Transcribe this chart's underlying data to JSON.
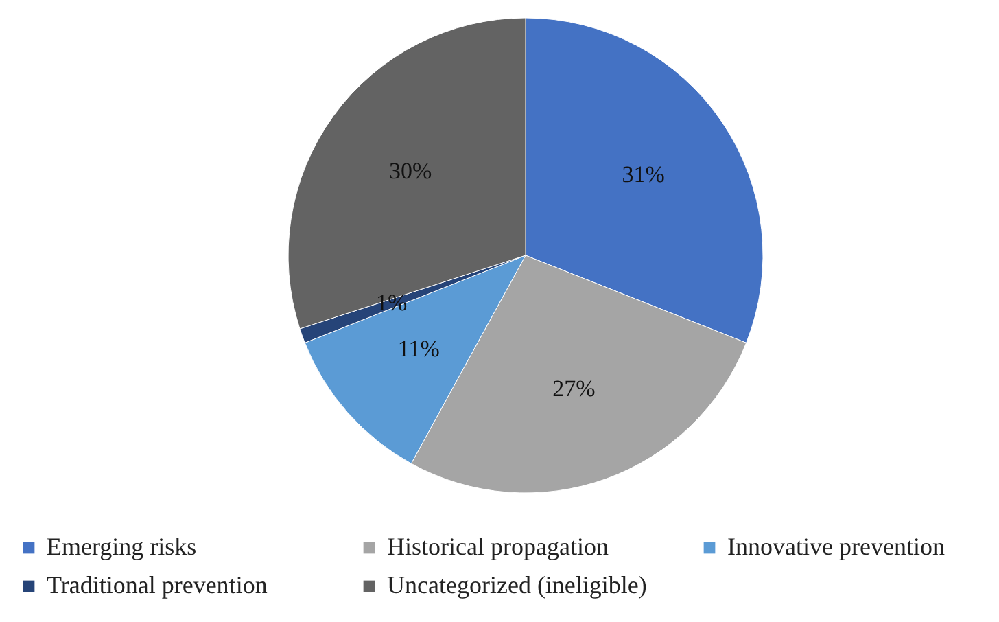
{
  "chart_data": {
    "type": "pie",
    "categories": [
      "Emerging risks",
      "Historical propagation",
      "Innovative prevention",
      "Traditional prevention",
      "Uncategorized (ineligible)"
    ],
    "values": [
      31,
      27,
      11,
      1,
      30
    ],
    "colors": [
      "#4472c4",
      "#a5a5a5",
      "#5b9bd5",
      "#264478",
      "#636363"
    ],
    "value_labels": [
      "31%",
      "27%",
      "11%",
      "1%",
      "30%"
    ],
    "legend": "bottom"
  }
}
